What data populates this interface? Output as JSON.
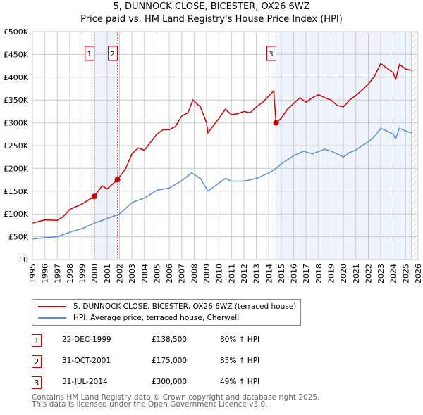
{
  "chart_data": {
    "type": "line",
    "title": "5, DUNNOCK CLOSE, BICESTER, OX26 6WZ",
    "subtitle": "Price paid vs. HM Land Registry's House Price Index (HPI)",
    "xlim": [
      1995,
      2026
    ],
    "ylim": [
      0,
      500000
    ],
    "x_ticks": [
      "1995",
      "1996",
      "1997",
      "1998",
      "1999",
      "2000",
      "2001",
      "2002",
      "2003",
      "2004",
      "2005",
      "2006",
      "2007",
      "2008",
      "2009",
      "2010",
      "2011",
      "2012",
      "2013",
      "2014",
      "2015",
      "2016",
      "2017",
      "2018",
      "2019",
      "2020",
      "2021",
      "2022",
      "2023",
      "2024",
      "2025",
      "2026"
    ],
    "y_ticks": [
      "£0",
      "£50K",
      "£100K",
      "£150K",
      "£200K",
      "£250K",
      "£300K",
      "£350K",
      "£400K",
      "£450K",
      "£500K"
    ],
    "grid": true,
    "series": [
      {
        "name": "5, DUNNOCK CLOSE, BICESTER, OX26 6WZ (terraced house)",
        "color": "#cc0000",
        "x": [
          1995,
          1996,
          1997,
          1997.5,
          1998,
          1999,
          1999.97,
          2000.6,
          2001,
          2001.83,
          2002.5,
          2003,
          2003.5,
          2004,
          2005,
          2005.5,
          2006,
          2006.5,
          2007,
          2007.5,
          2007.9,
          2008.5,
          2009,
          2009.1,
          2010,
          2010.5,
          2011,
          2011.5,
          2012,
          2012.5,
          2013,
          2013.5,
          2014.4,
          2014.58,
          2015,
          2015.5,
          2016.5,
          2017,
          2017.5,
          2018,
          2018.5,
          2019,
          2019.5,
          2020,
          2020.5,
          2021,
          2021.5,
          2022,
          2022.5,
          2023,
          2023.5,
          2024,
          2024.2,
          2024.5,
          2025,
          2025.5
        ],
        "y": [
          80,
          87,
          86,
          95,
          110,
          122,
          138.5,
          162,
          155,
          175,
          200,
          232,
          245,
          240,
          275,
          285,
          285,
          292,
          315,
          322,
          350,
          335,
          300,
          278,
          310,
          330,
          318,
          320,
          325,
          322,
          335,
          345,
          370,
          300,
          310,
          330,
          355,
          345,
          355,
          362,
          355,
          350,
          338,
          335,
          350,
          360,
          372,
          385,
          402,
          430,
          420,
          410,
          395,
          428,
          418,
          415
        ]
      },
      {
        "name": "HPI: Average price, terraced house, Cherwell",
        "color": "#5b8fd4",
        "x": [
          1995,
          1996,
          1997,
          1998,
          1999,
          2000,
          2001,
          2002,
          2003,
          2004,
          2005,
          2006,
          2007,
          2007.8,
          2008.5,
          2009.1,
          2010,
          2010.5,
          2011,
          2012,
          2013,
          2014,
          2014.6,
          2015,
          2016,
          2016.8,
          2017.5,
          2018.5,
          2019,
          2019.5,
          2020,
          2020.5,
          2021,
          2021.5,
          2022,
          2022.5,
          2023,
          2023.5,
          2024,
          2024.2,
          2024.5,
          2025,
          2025.5
        ],
        "y": [
          45,
          48,
          50,
          60,
          68,
          80,
          90,
          100,
          125,
          135,
          152,
          157,
          173,
          190,
          178,
          150,
          168,
          178,
          172,
          172,
          178,
          190,
          200,
          210,
          228,
          238,
          232,
          242,
          238,
          232,
          225,
          235,
          240,
          250,
          258,
          270,
          288,
          282,
          275,
          265,
          288,
          282,
          278
        ]
      }
    ],
    "y_units": "thousands GBP",
    "sales": [
      {
        "id": "1",
        "x": 1999.97,
        "y": 138.5
      },
      {
        "id": "2",
        "x": 2001.83,
        "y": 175
      },
      {
        "id": "3",
        "x": 2014.58,
        "y": 300
      }
    ],
    "shaded": [
      [
        1999.97,
        2001.83
      ],
      [
        2014.58,
        2025.5
      ]
    ],
    "hatched_from": 2025.5,
    "legend_position": "below"
  },
  "transactions": [
    {
      "id": "1",
      "date": "22-DEC-1999",
      "price": "£138,500",
      "hpi": "80% ↑ HPI"
    },
    {
      "id": "2",
      "date": "31-OCT-2001",
      "price": "£175,000",
      "hpi": "85% ↑ HPI"
    },
    {
      "id": "3",
      "date": "31-JUL-2014",
      "price": "£300,000",
      "hpi": "49% ↑ HPI"
    }
  ],
  "footer": {
    "line1": "Contains HM Land Registry data © Crown copyright and database right 2025.",
    "line2": "This data is licensed under the Open Government Licence v3.0."
  }
}
